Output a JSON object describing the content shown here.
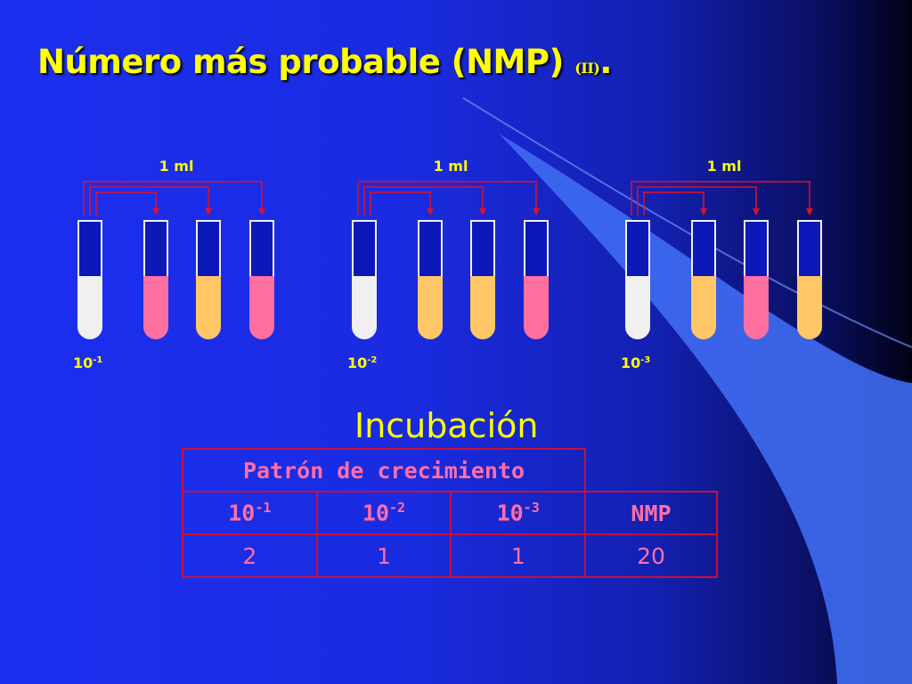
{
  "title": {
    "main": "Número más probable (NMP)",
    "suffix": "(II)",
    "period": "."
  },
  "transfer_label": "1 ml",
  "dilutions": [
    {
      "base": "10",
      "exp": "-1",
      "tubes": [
        "#f0f0f0",
        "#ff6fa0",
        "#ffc766",
        "#ff6fa0"
      ]
    },
    {
      "base": "10",
      "exp": "-2",
      "tubes": [
        "#f0f0f0",
        "#ffc766",
        "#ffc766",
        "#ff6fa0"
      ]
    },
    {
      "base": "10",
      "exp": "-3",
      "tubes": [
        "#f0f0f0",
        "#ffc766",
        "#ff6fa0",
        "#ffc766"
      ]
    }
  ],
  "colors": {
    "white_tube": "#f0f0f0",
    "positive_pink": "#ff6fa0",
    "negative_yellow": "#ffc766",
    "arrow_red": "#e0102a",
    "label_yellow": "#ffff00"
  },
  "incubation_label": "Incubación",
  "table": {
    "group_header": "Patrón de crecimiento",
    "headers": [
      {
        "base": "10",
        "exp": "-1"
      },
      {
        "base": "10",
        "exp": "-2"
      },
      {
        "base": "10",
        "exp": "-3"
      },
      {
        "text": "NMP"
      }
    ],
    "values": [
      "2",
      "1",
      "1",
      "20"
    ]
  }
}
